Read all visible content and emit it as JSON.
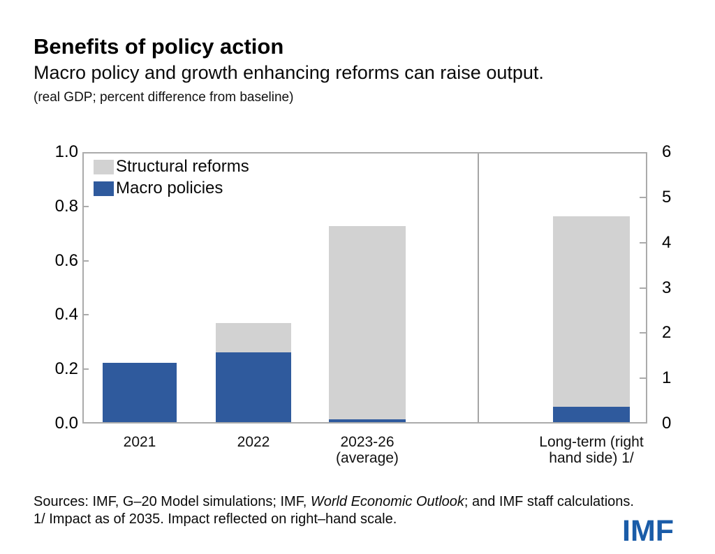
{
  "header": {
    "title": "Benefits of policy action",
    "subtitle": "Macro policy and growth enhancing reforms can raise output.",
    "units": "(real GDP; percent difference from baseline)"
  },
  "chart_data": {
    "type": "bar",
    "stacked": true,
    "title": "Benefits of policy action",
    "subtitle": "Macro policy and growth enhancing reforms can raise output.",
    "units_note": "(real GDP; percent difference from baseline)",
    "categories": [
      "2021",
      "2022",
      "2023-26 (average)",
      "Long-term (right hand side) 1/"
    ],
    "category_lines": [
      [
        "2021"
      ],
      [
        "2022"
      ],
      [
        "2023-26",
        "(average)"
      ],
      [
        "Long-term (right",
        "hand side) 1/"
      ]
    ],
    "series": [
      {
        "name": "Macro policies",
        "color": "#2F5A9D",
        "values": [
          0.22,
          0.26,
          0.01,
          0.35
        ]
      },
      {
        "name": "Structural reforms",
        "color": "#D2D2D2",
        "values": [
          0.0,
          0.11,
          0.72,
          4.25
        ]
      }
    ],
    "totals": [
      0.22,
      0.37,
      0.73,
      4.6
    ],
    "bar_axis": [
      "left",
      "left",
      "left",
      "right"
    ],
    "left_axis": {
      "range": [
        0,
        1.0
      ],
      "ticks": [
        1.0,
        0.8,
        0.6,
        0.4,
        0.2,
        0.0
      ],
      "tick_labels": [
        "1.0",
        "0.8",
        "0.6",
        "0.4",
        "0.2",
        "0.0"
      ]
    },
    "right_axis": {
      "range": [
        0,
        6
      ],
      "ticks": [
        6,
        5,
        4,
        3,
        2,
        1,
        0
      ],
      "tick_labels": [
        "6",
        "5",
        "4",
        "3",
        "2",
        "1",
        "0"
      ]
    },
    "legend": [
      {
        "label": "Structural reforms",
        "color": "#D2D2D2"
      },
      {
        "label": "Macro policies",
        "color": "#2F5A9D"
      }
    ],
    "legend_position": "top-left",
    "grid": false,
    "divider_after_category": 2
  },
  "footer": {
    "sources_prefix": "Sources: IMF, G–20 Model simulations; IMF, ",
    "sources_italic": "World Economic Outlook",
    "sources_suffix": "; and IMF staff calculations.",
    "footnote": "1/ Impact as of 2035. Impact reflected on right–hand scale.",
    "logo": "IMF"
  },
  "colors": {
    "macro_blue": "#2F5A9D",
    "structural_gray": "#D2D2D2",
    "axis_gray": "#ABABAB",
    "logo_blue": "#1A5CA8"
  }
}
